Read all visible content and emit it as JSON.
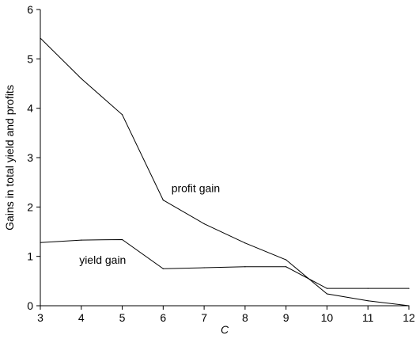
{
  "chart_data": {
    "type": "line",
    "xlabel": "C",
    "ylabel": "Gains in total yield and profits",
    "xlim": [
      3,
      12
    ],
    "ylim": [
      0,
      6
    ],
    "xticks": [
      3,
      4,
      5,
      6,
      7,
      8,
      9,
      10,
      11,
      12
    ],
    "yticks": [
      0,
      1,
      2,
      3,
      4,
      5,
      6
    ],
    "grid": false,
    "x": [
      3,
      4,
      5,
      6,
      7,
      8,
      9,
      10,
      11,
      12
    ],
    "series": [
      {
        "values": [
          5.42,
          4.6,
          3.87,
          2.14,
          1.66,
          1.27,
          0.93,
          0.24,
          0.1,
          0.0
        ]
      },
      {
        "values": [
          1.28,
          1.33,
          1.34,
          0.75,
          0.77,
          0.79,
          0.79,
          0.35,
          0.35,
          0.35
        ]
      }
    ],
    "annotations": [
      {
        "text": "profit gain",
        "x": 6.2,
        "y": 2.3
      },
      {
        "text": "yield gain",
        "x": 3.95,
        "y": 0.85
      }
    ]
  }
}
